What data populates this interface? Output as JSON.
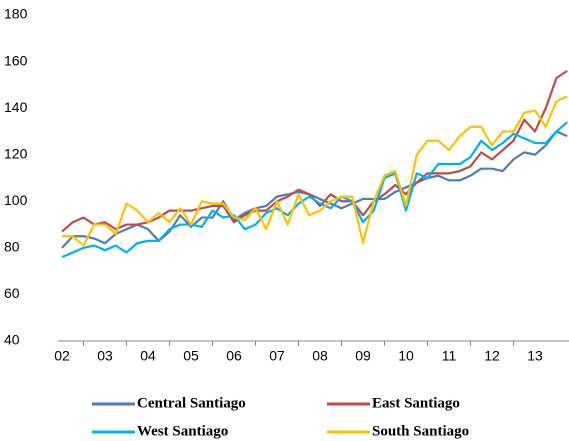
{
  "chart_data": {
    "type": "line",
    "categories": [
      "02",
      null,
      null,
      null,
      "03",
      null,
      null,
      null,
      "04",
      null,
      null,
      null,
      "05",
      null,
      null,
      null,
      "06",
      null,
      null,
      null,
      "07",
      null,
      null,
      null,
      "08",
      null,
      null,
      null,
      "09",
      null,
      null,
      null,
      "10",
      null,
      null,
      null,
      "11",
      null,
      null,
      null,
      "12",
      null,
      null,
      null,
      "13",
      null,
      null,
      null
    ],
    "series": [
      {
        "name": "Central Santiago",
        "color": "#4a7ebb",
        "values": [
          80,
          85,
          85,
          84,
          82,
          86,
          88,
          90,
          88,
          83,
          87,
          94,
          89,
          93,
          93,
          100,
          92,
          95,
          97,
          98,
          102,
          103,
          104,
          103,
          101,
          99,
          97,
          99,
          101,
          101,
          101,
          104,
          106,
          108,
          110,
          111,
          109,
          109,
          111,
          114,
          114,
          113,
          118,
          121,
          120,
          124,
          130,
          128
        ]
      },
      {
        "name": "East Santiago",
        "color": "#be4b48",
        "values": [
          87,
          91,
          93,
          90,
          91,
          88,
          90,
          90,
          91,
          93,
          96,
          96,
          96,
          97,
          98,
          98,
          91,
          94,
          96,
          96,
          100,
          102,
          105,
          103,
          98,
          103,
          100,
          100,
          94,
          100,
          103,
          107,
          103,
          108,
          112,
          112,
          112,
          113,
          115,
          121,
          118,
          122,
          126,
          135,
          130,
          140,
          153,
          156
        ]
      },
      {
        "name": "West Santiago",
        "color": "#00b0f0",
        "values": [
          76,
          78,
          80,
          81,
          79,
          81,
          78,
          82,
          83,
          83,
          88,
          90,
          90,
          89,
          96,
          93,
          94,
          88,
          90,
          95,
          97,
          94,
          99,
          102,
          99,
          97,
          102,
          100,
          91,
          96,
          110,
          112,
          96,
          112,
          110,
          116,
          116,
          116,
          119,
          126,
          122,
          125,
          129,
          127,
          125,
          125,
          130,
          134
        ]
      },
      {
        "name": "South Santiago",
        "color": "#ffc000",
        "values": [
          85,
          85,
          81,
          90,
          90,
          86,
          99,
          96,
          91,
          95,
          91,
          97,
          90,
          100,
          99,
          99,
          93,
          92,
          97,
          88,
          100,
          90,
          103,
          94,
          96,
          100,
          102,
          102,
          82,
          100,
          111,
          113,
          98,
          120,
          126,
          126,
          122,
          128,
          132,
          132,
          124,
          130,
          130,
          138,
          139,
          132,
          143,
          145
        ]
      }
    ],
    "ylim": [
      40,
      180
    ],
    "yticks": [
      40,
      60,
      80,
      100,
      120,
      140,
      160,
      180
    ],
    "grid": false
  }
}
